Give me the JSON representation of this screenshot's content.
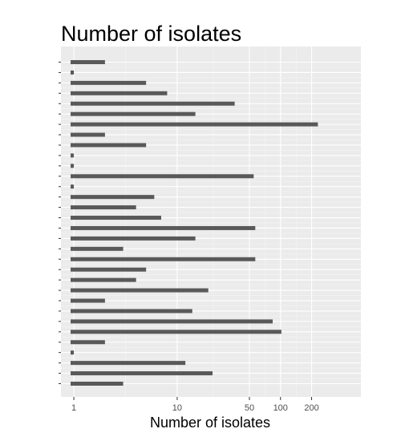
{
  "chart_data": {
    "type": "bar",
    "orientation": "horizontal",
    "title": "Number of isolates",
    "xlabel": "Number of isolates",
    "ylabel": "",
    "x_scale": "log10",
    "xlim": [
      0.75,
      600
    ],
    "x_ticks": [
      1,
      10,
      50,
      100,
      200
    ],
    "x_tick_labels": [
      "1",
      "10",
      "50",
      "100",
      "200"
    ],
    "grid": true,
    "legend": "none",
    "bar_color": "#595959",
    "panel_color": "#ebebeb",
    "values": [
      2,
      1,
      5,
      8,
      36,
      15,
      230,
      2,
      5,
      1,
      1,
      55,
      1,
      6,
      4,
      7,
      57,
      15,
      3,
      57,
      5,
      4,
      20,
      2,
      14,
      84,
      102,
      2,
      1,
      12,
      22,
      3
    ]
  }
}
